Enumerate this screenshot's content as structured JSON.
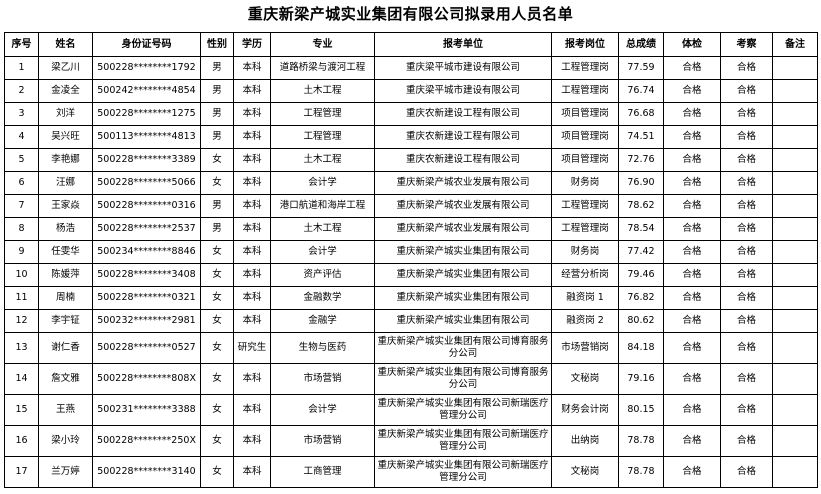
{
  "title": "重庆新梁产城实业集团有限公司拟录用人员名单",
  "table": {
    "header": [
      "序号",
      "姓名",
      "身份证号码",
      "性别",
      "学历",
      "专业",
      "报考单位",
      "报考岗位",
      "总成绩",
      "体检",
      "考察",
      "备注"
    ],
    "rows": [
      [
        "1",
        "梁乙川",
        "500228********1792",
        "男",
        "本科",
        "道路桥梁与渡河工程",
        "重庆梁平城市建设有限公司",
        "工程管理岗",
        "77.59",
        "合格",
        "合格"
      ],
      [
        "2",
        "金凌全",
        "500242********4854",
        "男",
        "本科",
        "土木工程",
        "重庆梁平城市建设有限公司",
        "工程管理岗",
        "76.74",
        "合格",
        "合格"
      ],
      [
        "3",
        "刘洋",
        "500228********1275",
        "男",
        "本科",
        "工程管理",
        "重庆农新建设工程有限公司",
        "项目管理岗",
        "76.68",
        "合格",
        "合格"
      ],
      [
        "4",
        "吴兴旺",
        "500113********4813",
        "男",
        "本科",
        "工程管理",
        "重庆农新建设工程有限公司",
        "项目管理岗",
        "74.51",
        "合格",
        "合格"
      ],
      [
        "5",
        "李艳娜",
        "500228********3389",
        "女",
        "本科",
        "土木工程",
        "重庆农新建设工程有限公司",
        "项目管理岗",
        "72.76",
        "合格",
        "合格"
      ],
      [
        "6",
        "汪娜",
        "500228********5066",
        "女",
        "本科",
        "会计学",
        "重庆新梁产城农业发展有限公司",
        "财务岗",
        "76.90",
        "合格",
        "合格"
      ],
      [
        "7",
        "王家焱",
        "500228********0316",
        "男",
        "本科",
        "港口航道和海岸工程",
        "重庆新梁产城农业发展有限公司",
        "工程管理岗",
        "78.62",
        "合格",
        "合格"
      ],
      [
        "8",
        "杨浩",
        "500228********2537",
        "男",
        "本科",
        "土木工程",
        "重庆新梁产城农业发展有限公司",
        "工程管理岗",
        "78.54",
        "合格",
        "合格"
      ],
      [
        "9",
        "任雯华",
        "500234********8846",
        "女",
        "本科",
        "会计学",
        "重庆新梁产城实业集团有限公司",
        "财务岗",
        "77.42",
        "合格",
        "合格"
      ],
      [
        "10",
        "陈媛萍",
        "500228********3408",
        "女",
        "本科",
        "资产评估",
        "重庆新梁产城实业集团有限公司",
        "经营分析岗",
        "79.46",
        "合格",
        "合格"
      ],
      [
        "11",
        "周楠",
        "500228********0321",
        "女",
        "本科",
        "金融数学",
        "重庆新梁产城实业集团有限公司",
        "融资岗 1",
        "76.82",
        "合格",
        "合格"
      ],
      [
        "12",
        "李宇钲",
        "500232********2981",
        "女",
        "本科",
        "金融学",
        "重庆新梁产城实业集团有限公司",
        "融资岗 2",
        "80.62",
        "合格",
        "合格"
      ],
      [
        "13",
        "谢仁香",
        "500228********0527",
        "女",
        "研究生",
        "生物与医药",
        "重庆新梁产城实业集团有限公司博育服务分公司",
        "市场营销岗",
        "84.18",
        "合格",
        "合格"
      ],
      [
        "14",
        "詹文雅",
        "500228********808X",
        "女",
        "本科",
        "市场营销",
        "重庆新梁产城实业集团有限公司博育服务分公司",
        "文秘岗",
        "79.16",
        "合格",
        "合格"
      ],
      [
        "15",
        "王燕",
        "500231********3388",
        "女",
        "本科",
        "会计学",
        "重庆新梁产城实业集团有限公司新瑞医疗管理分公司",
        "财务会计岗",
        "80.15",
        "合格",
        "合格"
      ],
      [
        "16",
        "梁小玲",
        "500228********250X",
        "女",
        "本科",
        "市场营销",
        "重庆新梁产城实业集团有限公司新瑞医疗管理分公司",
        "出纳岗",
        "78.78",
        "合格",
        "合格"
      ],
      [
        "17",
        "兰万婷",
        "500228********3140",
        "女",
        "本科",
        "工商管理",
        "重庆新梁产城实业集团有限公司新瑞医疗管理分公司",
        "文秘岗",
        "78.78",
        "合格",
        "合格"
      ]
    ]
  }
}
